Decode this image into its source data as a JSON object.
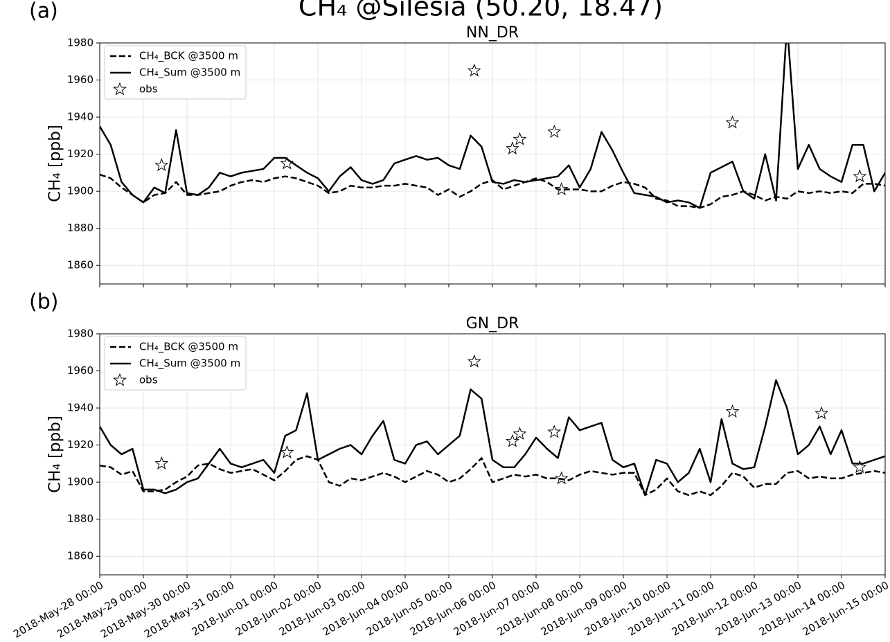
{
  "title": "CH₄ @Silesia (50.20, 18.47)",
  "chart_data": [
    {
      "type": "line",
      "panel_label": "(a)",
      "title": "NN_DR",
      "y_label": "CH₄ [ppb]",
      "xlim": [
        "2018-05-28T00:00",
        "2018-06-15T00:00"
      ],
      "ylim": [
        1850,
        1980
      ],
      "yticks": [
        1860,
        1880,
        1900,
        1920,
        1940,
        1960,
        1980
      ],
      "xticks": [
        "2018-05-28T00:00",
        "2018-05-29T00:00",
        "2018-05-30T00:00",
        "2018-05-31T00:00",
        "2018-06-01T00:00",
        "2018-06-02T00:00",
        "2018-06-03T00:00",
        "2018-06-04T00:00",
        "2018-06-05T00:00",
        "2018-06-06T00:00",
        "2018-06-07T00:00",
        "2018-06-08T00:00",
        "2018-06-09T00:00",
        "2018-06-10T00:00",
        "2018-06-11T00:00",
        "2018-06-12T00:00",
        "2018-06-13T00:00",
        "2018-06-14T00:00",
        "2018-06-15T00:00"
      ],
      "grid": true,
      "legend": "upper left",
      "x": [
        "2018-05-28T00:00",
        "2018-05-28T06:00",
        "2018-05-28T12:00",
        "2018-05-28T18:00",
        "2018-05-29T00:00",
        "2018-05-29T06:00",
        "2018-05-29T12:00",
        "2018-05-29T18:00",
        "2018-05-30T00:00",
        "2018-05-30T06:00",
        "2018-05-30T12:00",
        "2018-05-30T18:00",
        "2018-05-31T00:00",
        "2018-05-31T06:00",
        "2018-05-31T12:00",
        "2018-05-31T18:00",
        "2018-06-01T00:00",
        "2018-06-01T06:00",
        "2018-06-01T12:00",
        "2018-06-01T18:00",
        "2018-06-02T00:00",
        "2018-06-02T06:00",
        "2018-06-02T12:00",
        "2018-06-02T18:00",
        "2018-06-03T00:00",
        "2018-06-03T06:00",
        "2018-06-03T12:00",
        "2018-06-03T18:00",
        "2018-06-04T00:00",
        "2018-06-04T06:00",
        "2018-06-04T12:00",
        "2018-06-04T18:00",
        "2018-06-05T00:00",
        "2018-06-05T06:00",
        "2018-06-05T12:00",
        "2018-06-05T18:00",
        "2018-06-06T00:00",
        "2018-06-06T06:00",
        "2018-06-06T12:00",
        "2018-06-06T18:00",
        "2018-06-07T00:00",
        "2018-06-07T06:00",
        "2018-06-07T12:00",
        "2018-06-07T18:00",
        "2018-06-08T00:00",
        "2018-06-08T06:00",
        "2018-06-08T12:00",
        "2018-06-08T18:00",
        "2018-06-09T00:00",
        "2018-06-09T06:00",
        "2018-06-09T12:00",
        "2018-06-09T18:00",
        "2018-06-10T00:00",
        "2018-06-10T06:00",
        "2018-06-10T12:00",
        "2018-06-10T18:00",
        "2018-06-11T00:00",
        "2018-06-11T06:00",
        "2018-06-11T12:00",
        "2018-06-11T18:00",
        "2018-06-12T00:00",
        "2018-06-12T06:00",
        "2018-06-12T12:00",
        "2018-06-12T18:00",
        "2018-06-13T00:00",
        "2018-06-13T06:00",
        "2018-06-13T12:00",
        "2018-06-13T18:00",
        "2018-06-14T00:00",
        "2018-06-14T06:00",
        "2018-06-14T12:00",
        "2018-06-14T18:00",
        "2018-06-15T00:00"
      ],
      "series": [
        {
          "name": "CH₄_BCK @3500 m",
          "color": "#000000",
          "linestyle": "dashed",
          "values": [
            1909,
            1907,
            1902,
            1898,
            1894,
            1898,
            1899,
            1905,
            1898,
            1898,
            1899,
            1900,
            1903,
            1905,
            1906,
            1905,
            1907,
            1908,
            1907,
            1905,
            1903,
            1899,
            1900,
            1903,
            1902,
            1902,
            1903,
            1903,
            1904,
            1903,
            1902,
            1898,
            1901,
            1897,
            1900,
            1904,
            1906,
            1901,
            1903,
            1905,
            1907,
            1905,
            1901,
            1901,
            1901,
            1900,
            1900,
            1903,
            1905,
            1904,
            1902,
            1896,
            1895,
            1892,
            1892,
            1891,
            1893,
            1897,
            1898,
            1900,
            1898,
            1895,
            1897,
            1896,
            1900,
            1899,
            1900,
            1899,
            1900,
            1899,
            1904,
            1904,
            1903
          ]
        },
        {
          "name": "CH₄_Sum @3500 m",
          "color": "#000000",
          "linestyle": "solid",
          "values": [
            1935,
            1925,
            1905,
            1898,
            1894,
            1902,
            1899,
            1933,
            1899,
            1898,
            1902,
            1910,
            1908,
            1910,
            1911,
            1912,
            1918,
            1918,
            1914,
            1910,
            1907,
            1900,
            1908,
            1913,
            1906,
            1904,
            1906,
            1915,
            1917,
            1919,
            1917,
            1918,
            1914,
            1912,
            1930,
            1924,
            1905,
            1904,
            1906,
            1905,
            1906,
            1907,
            1908,
            1914,
            1902,
            1912,
            1932,
            1922,
            1910,
            1899,
            1898,
            1897,
            1894,
            1895,
            1894,
            1891,
            1910,
            1913,
            1916,
            1900,
            1896,
            1920,
            1895,
            1990,
            1912,
            1925,
            1912,
            1908,
            1905,
            1925,
            1925,
            1900,
            1910
          ]
        },
        {
          "name": "obs",
          "color": "#000000",
          "marker": "star",
          "x": [
            "2018-05-29T10:00",
            "2018-06-01T07:00",
            "2018-06-05T14:00",
            "2018-06-06T11:00",
            "2018-06-06T15:00",
            "2018-06-07T10:00",
            "2018-06-07T14:00",
            "2018-06-11T12:00",
            "2018-06-14T10:00"
          ],
          "values": [
            1914,
            1915,
            1965,
            1923,
            1928,
            1932,
            1901,
            1937,
            1908
          ]
        }
      ]
    },
    {
      "type": "line",
      "panel_label": "(b)",
      "title": "GN_DR",
      "y_label": "CH₄ [ppb]",
      "xlim": [
        "2018-05-28T00:00",
        "2018-06-15T00:00"
      ],
      "ylim": [
        1850,
        1980
      ],
      "yticks": [
        1860,
        1880,
        1900,
        1920,
        1940,
        1960,
        1980
      ],
      "xticks": [
        {
          "value": "2018-05-28T00:00",
          "label": "2018-May-28 00:00"
        },
        {
          "value": "2018-05-29T00:00",
          "label": "2018-May-29 00:00"
        },
        {
          "value": "2018-05-30T00:00",
          "label": "2018-May-30 00:00"
        },
        {
          "value": "2018-05-31T00:00",
          "label": "2018-May-31 00:00"
        },
        {
          "value": "2018-06-01T00:00",
          "label": "2018-Jun-01 00:00"
        },
        {
          "value": "2018-06-02T00:00",
          "label": "2018-Jun-02 00:00"
        },
        {
          "value": "2018-06-03T00:00",
          "label": "2018-Jun-03 00:00"
        },
        {
          "value": "2018-06-04T00:00",
          "label": "2018-Jun-04 00:00"
        },
        {
          "value": "2018-06-05T00:00",
          "label": "2018-Jun-05 00:00"
        },
        {
          "value": "2018-06-06T00:00",
          "label": "2018-Jun-06 00:00"
        },
        {
          "value": "2018-06-07T00:00",
          "label": "2018-Jun-07 00:00"
        },
        {
          "value": "2018-06-08T00:00",
          "label": "2018-Jun-08 00:00"
        },
        {
          "value": "2018-06-09T00:00",
          "label": "2018-Jun-09 00:00"
        },
        {
          "value": "2018-06-10T00:00",
          "label": "2018-Jun-10 00:00"
        },
        {
          "value": "2018-06-11T00:00",
          "label": "2018-Jun-11 00:00"
        },
        {
          "value": "2018-06-12T00:00",
          "label": "2018-Jun-12 00:00"
        },
        {
          "value": "2018-06-13T00:00",
          "label": "2018-Jun-13 00:00"
        },
        {
          "value": "2018-06-14T00:00",
          "label": "2018-Jun-14 00:00"
        },
        {
          "value": "2018-06-15T00:00",
          "label": "2018-Jun-15 00:00"
        }
      ],
      "grid": true,
      "legend": "upper left",
      "x": [
        "2018-05-28T00:00",
        "2018-05-28T06:00",
        "2018-05-28T12:00",
        "2018-05-28T18:00",
        "2018-05-29T00:00",
        "2018-05-29T06:00",
        "2018-05-29T12:00",
        "2018-05-29T18:00",
        "2018-05-30T00:00",
        "2018-05-30T06:00",
        "2018-05-30T12:00",
        "2018-05-30T18:00",
        "2018-05-31T00:00",
        "2018-05-31T06:00",
        "2018-05-31T12:00",
        "2018-05-31T18:00",
        "2018-06-01T00:00",
        "2018-06-01T06:00",
        "2018-06-01T12:00",
        "2018-06-01T18:00",
        "2018-06-02T00:00",
        "2018-06-02T06:00",
        "2018-06-02T12:00",
        "2018-06-02T18:00",
        "2018-06-03T00:00",
        "2018-06-03T06:00",
        "2018-06-03T12:00",
        "2018-06-03T18:00",
        "2018-06-04T00:00",
        "2018-06-04T06:00",
        "2018-06-04T12:00",
        "2018-06-04T18:00",
        "2018-06-05T00:00",
        "2018-06-05T06:00",
        "2018-06-05T12:00",
        "2018-06-05T18:00",
        "2018-06-06T00:00",
        "2018-06-06T06:00",
        "2018-06-06T12:00",
        "2018-06-06T18:00",
        "2018-06-07T00:00",
        "2018-06-07T06:00",
        "2018-06-07T12:00",
        "2018-06-07T18:00",
        "2018-06-08T00:00",
        "2018-06-08T06:00",
        "2018-06-08T12:00",
        "2018-06-08T18:00",
        "2018-06-09T00:00",
        "2018-06-09T06:00",
        "2018-06-09T12:00",
        "2018-06-09T18:00",
        "2018-06-10T00:00",
        "2018-06-10T06:00",
        "2018-06-10T12:00",
        "2018-06-10T18:00",
        "2018-06-11T00:00",
        "2018-06-11T06:00",
        "2018-06-11T12:00",
        "2018-06-11T18:00",
        "2018-06-12T00:00",
        "2018-06-12T06:00",
        "2018-06-12T12:00",
        "2018-06-12T18:00",
        "2018-06-13T00:00",
        "2018-06-13T06:00",
        "2018-06-13T12:00",
        "2018-06-13T18:00",
        "2018-06-14T00:00",
        "2018-06-14T06:00",
        "2018-06-14T12:00",
        "2018-06-14T18:00",
        "2018-06-15T00:00"
      ],
      "series": [
        {
          "name": "CH₄_BCK @3500 m",
          "color": "#000000",
          "linestyle": "dashed",
          "values": [
            1909,
            1908,
            1904,
            1906,
            1895,
            1895,
            1896,
            1900,
            1903,
            1909,
            1910,
            1907,
            1905,
            1906,
            1907,
            1904,
            1901,
            1906,
            1912,
            1914,
            1912,
            1900,
            1898,
            1902,
            1901,
            1903,
            1905,
            1903,
            1900,
            1903,
            1906,
            1904,
            1900,
            1902,
            1907,
            1913,
            1900,
            1902,
            1904,
            1903,
            1904,
            1902,
            1902,
            1901,
            1904,
            1906,
            1905,
            1904,
            1905,
            1905,
            1893,
            1896,
            1902,
            1895,
            1893,
            1895,
            1893,
            1898,
            1905,
            1903,
            1897,
            1899,
            1899,
            1905,
            1906,
            1902,
            1903,
            1902,
            1902,
            1904,
            1905,
            1906,
            1905
          ]
        },
        {
          "name": "CH₄_Sum @3500 m",
          "color": "#000000",
          "linestyle": "solid",
          "values": [
            1930,
            1920,
            1915,
            1918,
            1896,
            1896,
            1894,
            1896,
            1900,
            1902,
            1910,
            1918,
            1910,
            1908,
            1910,
            1912,
            1905,
            1925,
            1928,
            1948,
            1912,
            1915,
            1918,
            1920,
            1915,
            1925,
            1933,
            1912,
            1910,
            1920,
            1922,
            1915,
            1920,
            1925,
            1950,
            1945,
            1912,
            1908,
            1908,
            1915,
            1924,
            1918,
            1913,
            1935,
            1928,
            1930,
            1932,
            1912,
            1908,
            1910,
            1893,
            1912,
            1910,
            1900,
            1905,
            1918,
            1900,
            1934,
            1910,
            1907,
            1908,
            1930,
            1955,
            1940,
            1915,
            1920,
            1930,
            1915,
            1928,
            1910,
            1910,
            1912,
            1914
          ]
        },
        {
          "name": "obs",
          "color": "#000000",
          "marker": "star",
          "x": [
            "2018-05-29T10:00",
            "2018-06-01T07:00",
            "2018-06-05T14:00",
            "2018-06-06T11:00",
            "2018-06-06T15:00",
            "2018-06-07T10:00",
            "2018-06-07T14:00",
            "2018-06-11T12:00",
            "2018-06-13T13:00",
            "2018-06-14T10:00"
          ],
          "values": [
            1910,
            1916,
            1965,
            1922,
            1926,
            1927,
            1902,
            1938,
            1937,
            1908
          ]
        }
      ]
    }
  ]
}
